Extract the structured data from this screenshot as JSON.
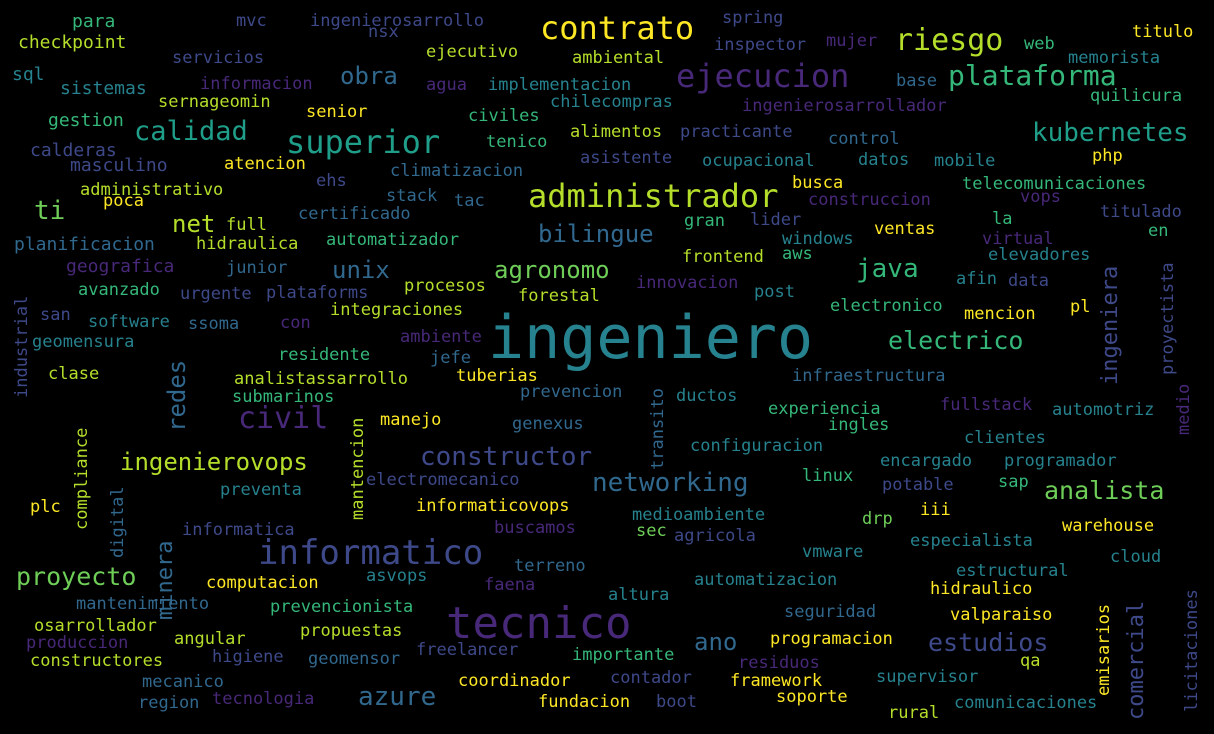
{
  "palette": {
    "background": "#000000",
    "colors": [
      "#fde725",
      "#b5de2b",
      "#6ece58",
      "#35b779",
      "#1f9e89",
      "#26828e",
      "#31688e",
      "#3e4989",
      "#482878",
      "#440154"
    ]
  },
  "words": [
    {
      "text": "ingeniero",
      "weight": 1.0,
      "color": "#26828e"
    },
    {
      "text": "tecnico",
      "weight": 0.78,
      "color": "#482878"
    },
    {
      "text": "informatico",
      "weight": 0.64,
      "color": "#3e4989"
    },
    {
      "text": "administrador",
      "weight": 0.6,
      "color": "#b5de2b"
    },
    {
      "text": "ejecucion",
      "weight": 0.58,
      "color": "#482878"
    },
    {
      "text": "contrato",
      "weight": 0.58,
      "color": "#fde725"
    },
    {
      "text": "superior",
      "weight": 0.56,
      "color": "#1f9e89"
    },
    {
      "text": "riesgo",
      "weight": 0.5,
      "color": "#b5de2b"
    },
    {
      "text": "civil",
      "weight": 0.5,
      "color": "#482878"
    },
    {
      "text": "plataforma",
      "weight": 0.48,
      "color": "#35b779"
    },
    {
      "text": "calidad",
      "weight": 0.46,
      "color": "#1f9e89"
    },
    {
      "text": "kubernetes",
      "weight": 0.46,
      "color": "#1f9e89"
    },
    {
      "text": "ingenierovops",
      "weight": 0.44,
      "color": "#b5de2b"
    },
    {
      "text": "constructor",
      "weight": 0.44,
      "color": "#3e4989"
    },
    {
      "text": "networking",
      "weight": 0.44,
      "color": "#31688e"
    },
    {
      "text": "analista",
      "weight": 0.44,
      "color": "#6ece58"
    },
    {
      "text": "proyecto",
      "weight": 0.44,
      "color": "#6ece58"
    },
    {
      "text": "estudios",
      "weight": 0.42,
      "color": "#3e4989"
    },
    {
      "text": "azure",
      "weight": 0.42,
      "color": "#31688e"
    },
    {
      "text": "electrico",
      "weight": 0.42,
      "color": "#35b779"
    },
    {
      "text": "bilingue",
      "weight": 0.42,
      "color": "#31688e"
    },
    {
      "text": "agronomo",
      "weight": 0.42,
      "color": "#6ece58"
    },
    {
      "text": "java",
      "weight": 0.42,
      "color": "#35b779"
    },
    {
      "text": "obra",
      "weight": 0.4,
      "color": "#31688e"
    },
    {
      "text": "unix",
      "weight": 0.4,
      "color": "#31688e"
    },
    {
      "text": "net",
      "weight": 0.4,
      "color": "#b5de2b"
    },
    {
      "text": "ti",
      "weight": 0.4,
      "color": "#6ece58"
    },
    {
      "text": "ano",
      "weight": 0.4,
      "color": "#31688e"
    },
    {
      "text": "redes",
      "weight": 0.38,
      "color": "#31688e"
    },
    {
      "text": "minera",
      "weight": 0.38,
      "color": "#31688e"
    },
    {
      "text": "comercial",
      "weight": 0.38,
      "color": "#3e4989"
    },
    {
      "text": "ingeniera",
      "weight": 0.38,
      "color": "#3e4989"
    },
    {
      "text": "para",
      "weight": 0.22,
      "color": "#35b779"
    },
    {
      "text": "checkpoint",
      "weight": 0.22,
      "color": "#b5de2b"
    },
    {
      "text": "sql",
      "weight": 0.2,
      "color": "#26828e"
    },
    {
      "text": "sistemas",
      "weight": 0.22,
      "color": "#26828e"
    },
    {
      "text": "gestion",
      "weight": 0.22,
      "color": "#35b779"
    },
    {
      "text": "calderas",
      "weight": 0.22,
      "color": "#3e4989"
    },
    {
      "text": "masculino",
      "weight": 0.22,
      "color": "#3e4989"
    },
    {
      "text": "administrativo",
      "weight": 0.22,
      "color": "#b5de2b"
    },
    {
      "text": "poca",
      "weight": 0.22,
      "color": "#fde725"
    },
    {
      "text": "planificacion",
      "weight": 0.22,
      "color": "#31688e"
    },
    {
      "text": "geografica",
      "weight": 0.22,
      "color": "#482878"
    },
    {
      "text": "avanzado",
      "weight": 0.22,
      "color": "#35b779"
    },
    {
      "text": "san",
      "weight": 0.22,
      "color": "#3e4989"
    },
    {
      "text": "software",
      "weight": 0.22,
      "color": "#26828e"
    },
    {
      "text": "geomensura",
      "weight": 0.22,
      "color": "#26828e"
    },
    {
      "text": "clase",
      "weight": 0.22,
      "color": "#b5de2b"
    },
    {
      "text": "industrial",
      "weight": 0.22,
      "color": "#3e4989"
    },
    {
      "text": "mvc",
      "weight": 0.22,
      "color": "#3e4989"
    },
    {
      "text": "servicios",
      "weight": 0.22,
      "color": "#3e4989"
    },
    {
      "text": "informacion",
      "weight": 0.22,
      "color": "#482878"
    },
    {
      "text": "sernageomin",
      "weight": 0.22,
      "color": "#b5de2b"
    },
    {
      "text": "senior",
      "weight": 0.22,
      "color": "#fde725"
    },
    {
      "text": "atencion",
      "weight": 0.22,
      "color": "#fde725"
    },
    {
      "text": "ehs",
      "weight": 0.22,
      "color": "#3e4989"
    },
    {
      "text": "ingenierosarrollo",
      "weight": 0.22,
      "color": "#3e4989"
    },
    {
      "text": "nsx",
      "weight": 0.22,
      "color": "#3e4989"
    },
    {
      "text": "ejecutivo",
      "weight": 0.22,
      "color": "#b5de2b"
    },
    {
      "text": "ambiental",
      "weight": 0.22,
      "color": "#b5de2b"
    },
    {
      "text": "agua",
      "weight": 0.22,
      "color": "#482878"
    },
    {
      "text": "implementacion",
      "weight": 0.22,
      "color": "#26828e"
    },
    {
      "text": "civiles",
      "weight": 0.22,
      "color": "#35b779"
    },
    {
      "text": "chilecompras",
      "weight": 0.22,
      "color": "#26828e"
    },
    {
      "text": "tenico",
      "weight": 0.22,
      "color": "#35b779"
    },
    {
      "text": "alimentos",
      "weight": 0.22,
      "color": "#b5de2b"
    },
    {
      "text": "climatizacion",
      "weight": 0.22,
      "color": "#31688e"
    },
    {
      "text": "asistente",
      "weight": 0.22,
      "color": "#3e4989"
    },
    {
      "text": "practicante",
      "weight": 0.22,
      "color": "#3e4989"
    },
    {
      "text": "spring",
      "weight": 0.22,
      "color": "#3e4989"
    },
    {
      "text": "inspector",
      "weight": 0.22,
      "color": "#3e4989"
    },
    {
      "text": "mujer",
      "weight": 0.22,
      "color": "#482878"
    },
    {
      "text": "web",
      "weight": 0.22,
      "color": "#35b779"
    },
    {
      "text": "titulo",
      "weight": 0.22,
      "color": "#fde725"
    },
    {
      "text": "memorista",
      "weight": 0.22,
      "color": "#26828e"
    },
    {
      "text": "base",
      "weight": 0.22,
      "color": "#31688e"
    },
    {
      "text": "ingenierosarrollador",
      "weight": 0.22,
      "color": "#482878"
    },
    {
      "text": "quilicura",
      "weight": 0.22,
      "color": "#35b779"
    },
    {
      "text": "control",
      "weight": 0.22,
      "color": "#31688e"
    },
    {
      "text": "ocupacional",
      "weight": 0.22,
      "color": "#26828e"
    },
    {
      "text": "datos",
      "weight": 0.22,
      "color": "#26828e"
    },
    {
      "text": "mobile",
      "weight": 0.22,
      "color": "#26828e"
    },
    {
      "text": "php",
      "weight": 0.22,
      "color": "#fde725"
    },
    {
      "text": "busca",
      "weight": 0.22,
      "color": "#fde725"
    },
    {
      "text": "construccion",
      "weight": 0.22,
      "color": "#482878"
    },
    {
      "text": "telecomunicaciones",
      "weight": 0.22,
      "color": "#35b779"
    },
    {
      "text": "stack",
      "weight": 0.22,
      "color": "#31688e"
    },
    {
      "text": "tac",
      "weight": 0.22,
      "color": "#31688e"
    },
    {
      "text": "certificado",
      "weight": 0.22,
      "color": "#31688e"
    },
    {
      "text": "vops",
      "weight": 0.22,
      "color": "#482878"
    },
    {
      "text": "titulado",
      "weight": 0.22,
      "color": "#3e4989"
    },
    {
      "text": "full",
      "weight": 0.22,
      "color": "#b5de2b"
    },
    {
      "text": "hidraulica",
      "weight": 0.22,
      "color": "#b5de2b"
    },
    {
      "text": "automatizador",
      "weight": 0.22,
      "color": "#35b779"
    },
    {
      "text": "gran",
      "weight": 0.22,
      "color": "#35b779"
    },
    {
      "text": "lider",
      "weight": 0.22,
      "color": "#3e4989"
    },
    {
      "text": "la",
      "weight": 0.22,
      "color": "#35b779"
    },
    {
      "text": "en",
      "weight": 0.22,
      "color": "#35b779"
    },
    {
      "text": "windows",
      "weight": 0.22,
      "color": "#26828e"
    },
    {
      "text": "ventas",
      "weight": 0.22,
      "color": "#fde725"
    },
    {
      "text": "virtual",
      "weight": 0.22,
      "color": "#482878"
    },
    {
      "text": "junior",
      "weight": 0.22,
      "color": "#31688e"
    },
    {
      "text": "frontend",
      "weight": 0.22,
      "color": "#b5de2b"
    },
    {
      "text": "aws",
      "weight": 0.22,
      "color": "#35b779"
    },
    {
      "text": "elevadores",
      "weight": 0.22,
      "color": "#26828e"
    },
    {
      "text": "urgente",
      "weight": 0.22,
      "color": "#3e4989"
    },
    {
      "text": "plataforms",
      "weight": 0.22,
      "color": "#3e4989"
    },
    {
      "text": "procesos",
      "weight": 0.22,
      "color": "#b5de2b"
    },
    {
      "text": "forestal",
      "weight": 0.22,
      "color": "#b5de2b"
    },
    {
      "text": "innovacion",
      "weight": 0.22,
      "color": "#482878"
    },
    {
      "text": "post",
      "weight": 0.22,
      "color": "#26828e"
    },
    {
      "text": "afin",
      "weight": 0.22,
      "color": "#26828e"
    },
    {
      "text": "data",
      "weight": 0.22,
      "color": "#3e4989"
    },
    {
      "text": "ssoma",
      "weight": 0.22,
      "color": "#31688e"
    },
    {
      "text": "integraciones",
      "weight": 0.22,
      "color": "#b5de2b"
    },
    {
      "text": "con",
      "weight": 0.22,
      "color": "#482878"
    },
    {
      "text": "ambiente",
      "weight": 0.22,
      "color": "#482878"
    },
    {
      "text": "electronico",
      "weight": 0.22,
      "color": "#35b779"
    },
    {
      "text": "mencion",
      "weight": 0.22,
      "color": "#fde725"
    },
    {
      "text": "pl",
      "weight": 0.22,
      "color": "#fde725"
    },
    {
      "text": "proyectista",
      "weight": 0.22,
      "color": "#3e4989"
    },
    {
      "text": "residente",
      "weight": 0.22,
      "color": "#35b779"
    },
    {
      "text": "jefe",
      "weight": 0.22,
      "color": "#31688e"
    },
    {
      "text": "analistassarrollo",
      "weight": 0.22,
      "color": "#b5de2b"
    },
    {
      "text": "tuberias",
      "weight": 0.22,
      "color": "#fde725"
    },
    {
      "text": "prevencion",
      "weight": 0.22,
      "color": "#31688e"
    },
    {
      "text": "infraestructura",
      "weight": 0.22,
      "color": "#31688e"
    },
    {
      "text": "submarinos",
      "weight": 0.22,
      "color": "#35b779"
    },
    {
      "text": "manejo",
      "weight": 0.22,
      "color": "#fde725"
    },
    {
      "text": "ductos",
      "weight": 0.22,
      "color": "#26828e"
    },
    {
      "text": "experiencia",
      "weight": 0.22,
      "color": "#35b779"
    },
    {
      "text": "fullstack",
      "weight": 0.22,
      "color": "#482878"
    },
    {
      "text": "automotriz",
      "weight": 0.22,
      "color": "#26828e"
    },
    {
      "text": "medio",
      "weight": 0.22,
      "color": "#482878"
    },
    {
      "text": "ingles",
      "weight": 0.22,
      "color": "#35b779"
    },
    {
      "text": "genexus",
      "weight": 0.22,
      "color": "#31688e"
    },
    {
      "text": "configuracion",
      "weight": 0.22,
      "color": "#26828e"
    },
    {
      "text": "clientes",
      "weight": 0.22,
      "color": "#26828e"
    },
    {
      "text": "transito",
      "weight": 0.22,
      "color": "#31688e"
    },
    {
      "text": "mantencion",
      "weight": 0.22,
      "color": "#b5de2b"
    },
    {
      "text": "compliance",
      "weight": 0.22,
      "color": "#b5de2b"
    },
    {
      "text": "digital",
      "weight": 0.22,
      "color": "#31688e"
    },
    {
      "text": "plc",
      "weight": 0.22,
      "color": "#fde725"
    },
    {
      "text": "preventa",
      "weight": 0.22,
      "color": "#26828e"
    },
    {
      "text": "electromecanico",
      "weight": 0.22,
      "color": "#3e4989"
    },
    {
      "text": "linux",
      "weight": 0.22,
      "color": "#35b779"
    },
    {
      "text": "encargado",
      "weight": 0.22,
      "color": "#26828e"
    },
    {
      "text": "programador",
      "weight": 0.22,
      "color": "#26828e"
    },
    {
      "text": "potable",
      "weight": 0.22,
      "color": "#3e4989"
    },
    {
      "text": "sap",
      "weight": 0.22,
      "color": "#35b779"
    },
    {
      "text": "informaticovops",
      "weight": 0.22,
      "color": "#fde725"
    },
    {
      "text": "medioambiente",
      "weight": 0.22,
      "color": "#26828e"
    },
    {
      "text": "drp",
      "weight": 0.22,
      "color": "#6ece58"
    },
    {
      "text": "iii",
      "weight": 0.22,
      "color": "#fde725"
    },
    {
      "text": "warehouse",
      "weight": 0.22,
      "color": "#fde725"
    },
    {
      "text": "informatica",
      "weight": 0.22,
      "color": "#3e4989"
    },
    {
      "text": "buscamos",
      "weight": 0.22,
      "color": "#482878"
    },
    {
      "text": "sec",
      "weight": 0.22,
      "color": "#6ece58"
    },
    {
      "text": "agricola",
      "weight": 0.22,
      "color": "#3e4989"
    },
    {
      "text": "especialista",
      "weight": 0.22,
      "color": "#26828e"
    },
    {
      "text": "cloud",
      "weight": 0.22,
      "color": "#26828e"
    },
    {
      "text": "terreno",
      "weight": 0.22,
      "color": "#31688e"
    },
    {
      "text": "vmware",
      "weight": 0.22,
      "color": "#26828e"
    },
    {
      "text": "estructural",
      "weight": 0.22,
      "color": "#26828e"
    },
    {
      "text": "computacion",
      "weight": 0.22,
      "color": "#fde725"
    },
    {
      "text": "asvops",
      "weight": 0.22,
      "color": "#26828e"
    },
    {
      "text": "faena",
      "weight": 0.22,
      "color": "#482878"
    },
    {
      "text": "automatizacion",
      "weight": 0.22,
      "color": "#26828e"
    },
    {
      "text": "hidraulico",
      "weight": 0.22,
      "color": "#fde725"
    },
    {
      "text": "emisarios",
      "weight": 0.22,
      "color": "#fde725"
    },
    {
      "text": "licitaciones",
      "weight": 0.22,
      "color": "#3e4989"
    },
    {
      "text": "mantenimiento",
      "weight": 0.22,
      "color": "#31688e"
    },
    {
      "text": "altura",
      "weight": 0.22,
      "color": "#26828e"
    },
    {
      "text": "prevencionista",
      "weight": 0.22,
      "color": "#35b779"
    },
    {
      "text": "seguridad",
      "weight": 0.22,
      "color": "#31688e"
    },
    {
      "text": "valparaiso",
      "weight": 0.22,
      "color": "#fde725"
    },
    {
      "text": "osarrollador",
      "weight": 0.22,
      "color": "#b5de2b"
    },
    {
      "text": "angular",
      "weight": 0.22,
      "color": "#b5de2b"
    },
    {
      "text": "propuestas",
      "weight": 0.22,
      "color": "#b5de2b"
    },
    {
      "text": "programacion",
      "weight": 0.22,
      "color": "#fde725"
    },
    {
      "text": "produccion",
      "weight": 0.22,
      "color": "#482878"
    },
    {
      "text": "higiene",
      "weight": 0.22,
      "color": "#3e4989"
    },
    {
      "text": "geomensor",
      "weight": 0.22,
      "color": "#31688e"
    },
    {
      "text": "freelancer",
      "weight": 0.22,
      "color": "#3e4989"
    },
    {
      "text": "importante",
      "weight": 0.22,
      "color": "#35b779"
    },
    {
      "text": "residuos",
      "weight": 0.22,
      "color": "#482878"
    },
    {
      "text": "qa",
      "weight": 0.22,
      "color": "#b5de2b"
    },
    {
      "text": "constructores",
      "weight": 0.22,
      "color": "#b5de2b"
    },
    {
      "text": "supervisor",
      "weight": 0.22,
      "color": "#26828e"
    },
    {
      "text": "mecanico",
      "weight": 0.22,
      "color": "#31688e"
    },
    {
      "text": "coordinador",
      "weight": 0.22,
      "color": "#fde725"
    },
    {
      "text": "contador",
      "weight": 0.22,
      "color": "#3e4989"
    },
    {
      "text": "framework",
      "weight": 0.22,
      "color": "#fde725"
    },
    {
      "text": "comunicaciones",
      "weight": 0.22,
      "color": "#26828e"
    },
    {
      "text": "region",
      "weight": 0.22,
      "color": "#31688e"
    },
    {
      "text": "tecnologia",
      "weight": 0.22,
      "color": "#482878"
    },
    {
      "text": "fundacion",
      "weight": 0.22,
      "color": "#fde725"
    },
    {
      "text": "boot",
      "weight": 0.22,
      "color": "#3e4989"
    },
    {
      "text": "soporte",
      "weight": 0.22,
      "color": "#fde725"
    },
    {
      "text": "rural",
      "weight": 0.22,
      "color": "#b5de2b"
    }
  ]
}
